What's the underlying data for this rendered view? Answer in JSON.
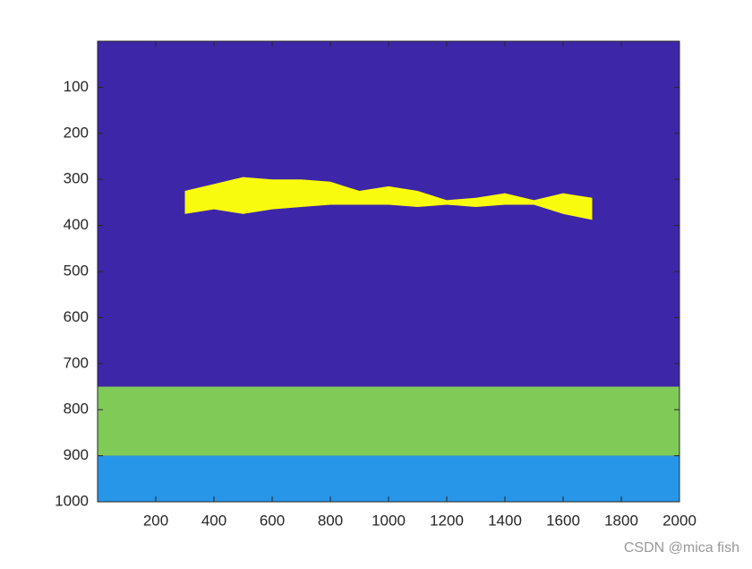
{
  "chart_data": {
    "type": "image",
    "xlim": [
      0,
      2000
    ],
    "ylim": [
      1000,
      0
    ],
    "xticks": [
      200,
      400,
      600,
      800,
      1000,
      1200,
      1400,
      1600,
      1800,
      2000
    ],
    "yticks": [
      100,
      200,
      300,
      400,
      500,
      600,
      700,
      800,
      900,
      1000
    ],
    "background": "#3e26a8",
    "regions": [
      {
        "color": "#80cb58",
        "x": [
          0,
          2000
        ],
        "y": [
          750,
          900
        ]
      },
      {
        "color": "#2896e8",
        "x": [
          0,
          2000
        ],
        "y": [
          900,
          1000
        ]
      }
    ],
    "blob": {
      "color": "#f9fb0e",
      "x": [
        300,
        400,
        500,
        600,
        700,
        800,
        900,
        1000,
        1100,
        1200,
        1300,
        1400,
        1500,
        1600,
        1700
      ],
      "top": [
        325,
        310,
        295,
        300,
        300,
        305,
        325,
        315,
        325,
        345,
        340,
        330,
        345,
        330,
        340
      ],
      "bottom": [
        375,
        365,
        375,
        365,
        360,
        355,
        355,
        355,
        360,
        355,
        360,
        355,
        355,
        375,
        388
      ]
    }
  },
  "watermark": "CSDN @mica fish"
}
